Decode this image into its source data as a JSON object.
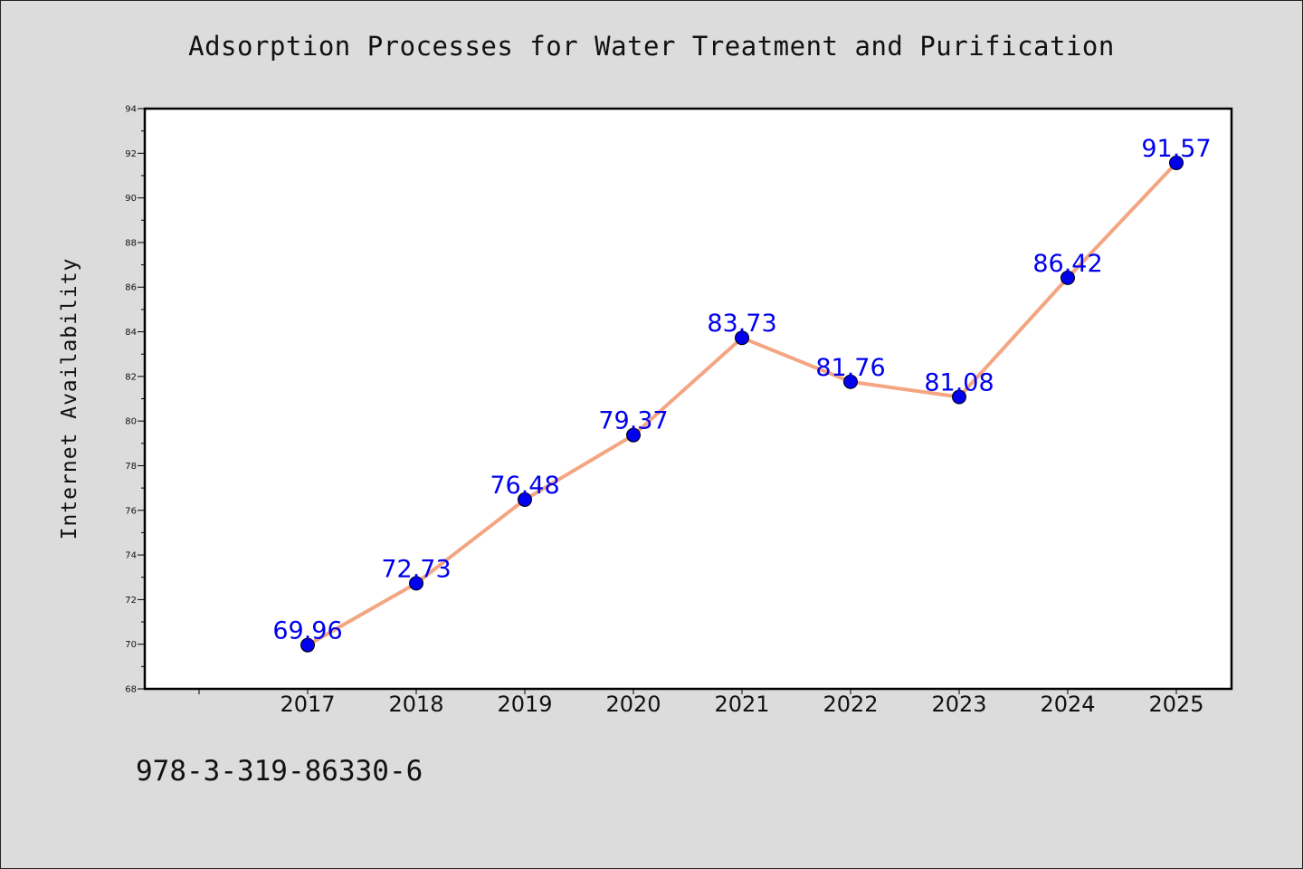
{
  "chart_data": {
    "type": "line",
    "title": "Adsorption Processes for Water Treatment and Purification",
    "xlabel": "",
    "ylabel": "Internet Availability",
    "categories": [
      "2017",
      "2018",
      "2019",
      "2020",
      "2021",
      "2022",
      "2023",
      "2024",
      "2025"
    ],
    "series": [
      {
        "values": [
          69.96,
          72.73,
          76.48,
          79.37,
          83.73,
          81.76,
          81.08,
          86.42,
          91.57
        ],
        "labels": [
          "69.96",
          "72.73",
          "76.48",
          "79.37",
          "83.73",
          "81.76",
          "81.08",
          "86.42",
          "91.57"
        ]
      }
    ],
    "ylim": [
      68,
      94
    ],
    "yticks": [
      "68",
      "70",
      "72",
      "74",
      "76",
      "78",
      "80",
      "82",
      "84",
      "86",
      "88",
      "90",
      "92",
      "94"
    ],
    "grid": false,
    "colors": {
      "line": "#f4a582",
      "marker": "#0000ee",
      "label": "#0000ee",
      "background": "#dcdcdc",
      "plot_background": "#ffffff"
    }
  },
  "footer": {
    "identifier": "978-3-319-86330-6"
  }
}
